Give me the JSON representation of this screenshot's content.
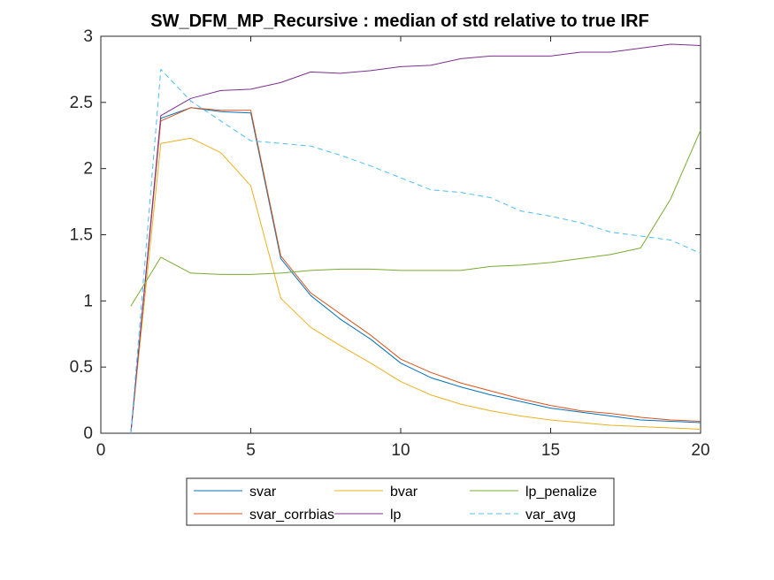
{
  "chart_data": {
    "type": "line",
    "title": "SW_DFM_MP_Recursive : median of std relative to true IRF",
    "xlabel": "",
    "ylabel": "",
    "xlim": [
      0,
      20
    ],
    "ylim": [
      0,
      3
    ],
    "x_ticks": [
      "0",
      "5",
      "10",
      "15",
      "20"
    ],
    "y_ticks": [
      "0",
      "0.5",
      "1",
      "1.5",
      "2",
      "2.5",
      "3"
    ],
    "grid": false,
    "legend_placement": "bottom-outside",
    "x": [
      1,
      2,
      3,
      4,
      5,
      6,
      7,
      8,
      9,
      10,
      11,
      12,
      13,
      14,
      15,
      16,
      17,
      18,
      19,
      20
    ],
    "series": [
      {
        "name": "svar",
        "color": "#0072BD",
        "dash": "solid",
        "values": [
          0,
          2.38,
          2.46,
          2.43,
          2.42,
          1.32,
          1.04,
          0.86,
          0.71,
          0.53,
          0.42,
          0.35,
          0.29,
          0.24,
          0.19,
          0.16,
          0.13,
          0.1,
          0.09,
          0.08
        ]
      },
      {
        "name": "svar_corrbias",
        "color": "#D95319",
        "dash": "solid",
        "values": [
          0,
          2.36,
          2.46,
          2.44,
          2.44,
          1.34,
          1.06,
          0.9,
          0.74,
          0.56,
          0.46,
          0.38,
          0.32,
          0.26,
          0.21,
          0.17,
          0.15,
          0.12,
          0.1,
          0.09
        ]
      },
      {
        "name": "bvar",
        "color": "#EDB120",
        "dash": "solid",
        "values": [
          0,
          2.19,
          2.23,
          2.12,
          1.87,
          1.02,
          0.8,
          0.66,
          0.53,
          0.39,
          0.29,
          0.22,
          0.17,
          0.13,
          0.1,
          0.08,
          0.06,
          0.05,
          0.04,
          0.03
        ]
      },
      {
        "name": "lp",
        "color": "#7E2F8E",
        "dash": "solid",
        "values": [
          0,
          2.4,
          2.53,
          2.59,
          2.6,
          2.65,
          2.73,
          2.72,
          2.74,
          2.77,
          2.78,
          2.83,
          2.85,
          2.85,
          2.85,
          2.88,
          2.88,
          2.91,
          2.94,
          2.93
        ]
      },
      {
        "name": "lp_penalize",
        "color": "#77AC30",
        "dash": "solid",
        "values": [
          0.96,
          1.33,
          1.21,
          1.2,
          1.2,
          1.21,
          1.23,
          1.24,
          1.24,
          1.23,
          1.23,
          1.23,
          1.26,
          1.27,
          1.29,
          1.32,
          1.35,
          1.4,
          1.77,
          2.29
        ]
      },
      {
        "name": "var_avg",
        "color": "#4DBEEE",
        "dash": "dashed",
        "values": [
          0,
          2.75,
          2.51,
          2.36,
          2.21,
          2.19,
          2.17,
          2.1,
          2.02,
          1.93,
          1.84,
          1.82,
          1.78,
          1.68,
          1.64,
          1.59,
          1.52,
          1.49,
          1.46,
          1.36
        ]
      }
    ],
    "legend_order": [
      "svar",
      "bvar",
      "lp_penalize",
      "svar_corrbias",
      "lp",
      "var_avg"
    ]
  }
}
